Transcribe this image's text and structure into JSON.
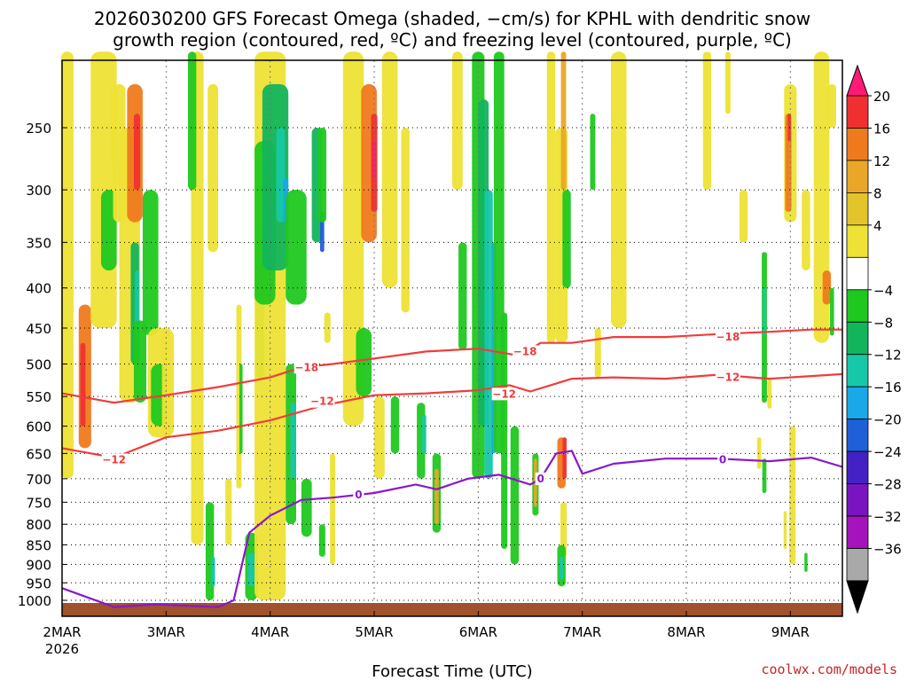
{
  "chart_data": {
    "type": "heatmap",
    "title_line1": "2026030200 GFS Forecast Omega (shaded, −cm/s) for KPHL with dendritic snow",
    "title_line2": "growth region (contoured, red, ºC) and freezing level (contoured, purple, ºC)",
    "xlabel": "Forecast Time (UTC)",
    "x_tick_labels": [
      "2MAR",
      "3MAR",
      "4MAR",
      "5MAR",
      "6MAR",
      "7MAR",
      "8MAR",
      "9MAR"
    ],
    "x_year_label": "2026",
    "x_range_days": [
      0,
      7.5
    ],
    "y_tick_labels": [
      "250",
      "300",
      "350",
      "400",
      "450",
      "500",
      "550",
      "600",
      "650",
      "700",
      "750",
      "800",
      "850",
      "900",
      "950",
      "1000"
    ],
    "y_tick_values": [
      250,
      300,
      350,
      400,
      450,
      500,
      550,
      600,
      650,
      700,
      750,
      800,
      850,
      900,
      950,
      1000
    ],
    "y_range_hpa": [
      200,
      1030
    ],
    "colorbar": {
      "labels": [
        "20",
        "16",
        "12",
        "8",
        "4",
        "−4",
        "−8",
        "−12",
        "−16",
        "−20",
        "−24",
        "−28",
        "−32",
        "−36"
      ],
      "colors": [
        "#ff1a75",
        "#f03030",
        "#ef7a1e",
        "#e9a627",
        "#e3c52b",
        "#ede235",
        "#ffffff",
        "#1fc81f",
        "#12b45c",
        "#16c7a8",
        "#1aa8e8",
        "#1f5fd8",
        "#4421c4",
        "#7a14c0",
        "#a413bb",
        "#a9a9a9",
        "#000000"
      ]
    },
    "contour_labels": {
      "dgz_minus18": "−18",
      "dgz_minus12": "−12",
      "freezing": "0"
    },
    "series": [
      {
        "name": "-18C isotherm",
        "color": "#f03c3c",
        "x": [
          0,
          0.5,
          1,
          1.5,
          2,
          2.3,
          2.6,
          3,
          3.5,
          4,
          4.4,
          4.6,
          4.9,
          5.3,
          5.8,
          6.3,
          6.8,
          7.2,
          7.5
        ],
        "y": [
          545,
          560,
          548,
          535,
          520,
          505,
          500,
          492,
          482,
          478,
          488,
          470,
          470,
          462,
          462,
          458,
          455,
          452,
          452
        ]
      },
      {
        "name": "-12C isotherm",
        "color": "#f03c3c",
        "x": [
          0,
          0.5,
          1,
          1.5,
          2,
          2.5,
          3,
          3.5,
          4,
          4.3,
          4.5,
          4.9,
          5.3,
          5.8,
          6.3,
          6.8,
          7.2,
          7.5
        ],
        "y": [
          640,
          658,
          620,
          608,
          590,
          565,
          548,
          545,
          540,
          532,
          542,
          522,
          520,
          522,
          516,
          522,
          518,
          515
        ]
      },
      {
        "name": "0C isotherm",
        "color": "#8a18c8",
        "x": [
          0,
          0.5,
          0.9,
          1.5,
          1.65,
          1.8,
          2.0,
          2.3,
          2.6,
          3,
          3.4,
          3.6,
          3.9,
          4.2,
          4.5,
          4.6,
          4.75,
          4.9,
          5.0,
          5.3,
          5.8,
          6.3,
          6.8,
          7.2,
          7.5
        ],
        "y": [
          965,
          1020,
          1012,
          1020,
          1000,
          820,
          780,
          745,
          740,
          730,
          712,
          722,
          700,
          692,
          712,
          700,
          650,
          645,
          690,
          670,
          660,
          660,
          665,
          658,
          676
        ]
      }
    ]
  },
  "footer": {
    "credit": "coolwx.com/models"
  }
}
